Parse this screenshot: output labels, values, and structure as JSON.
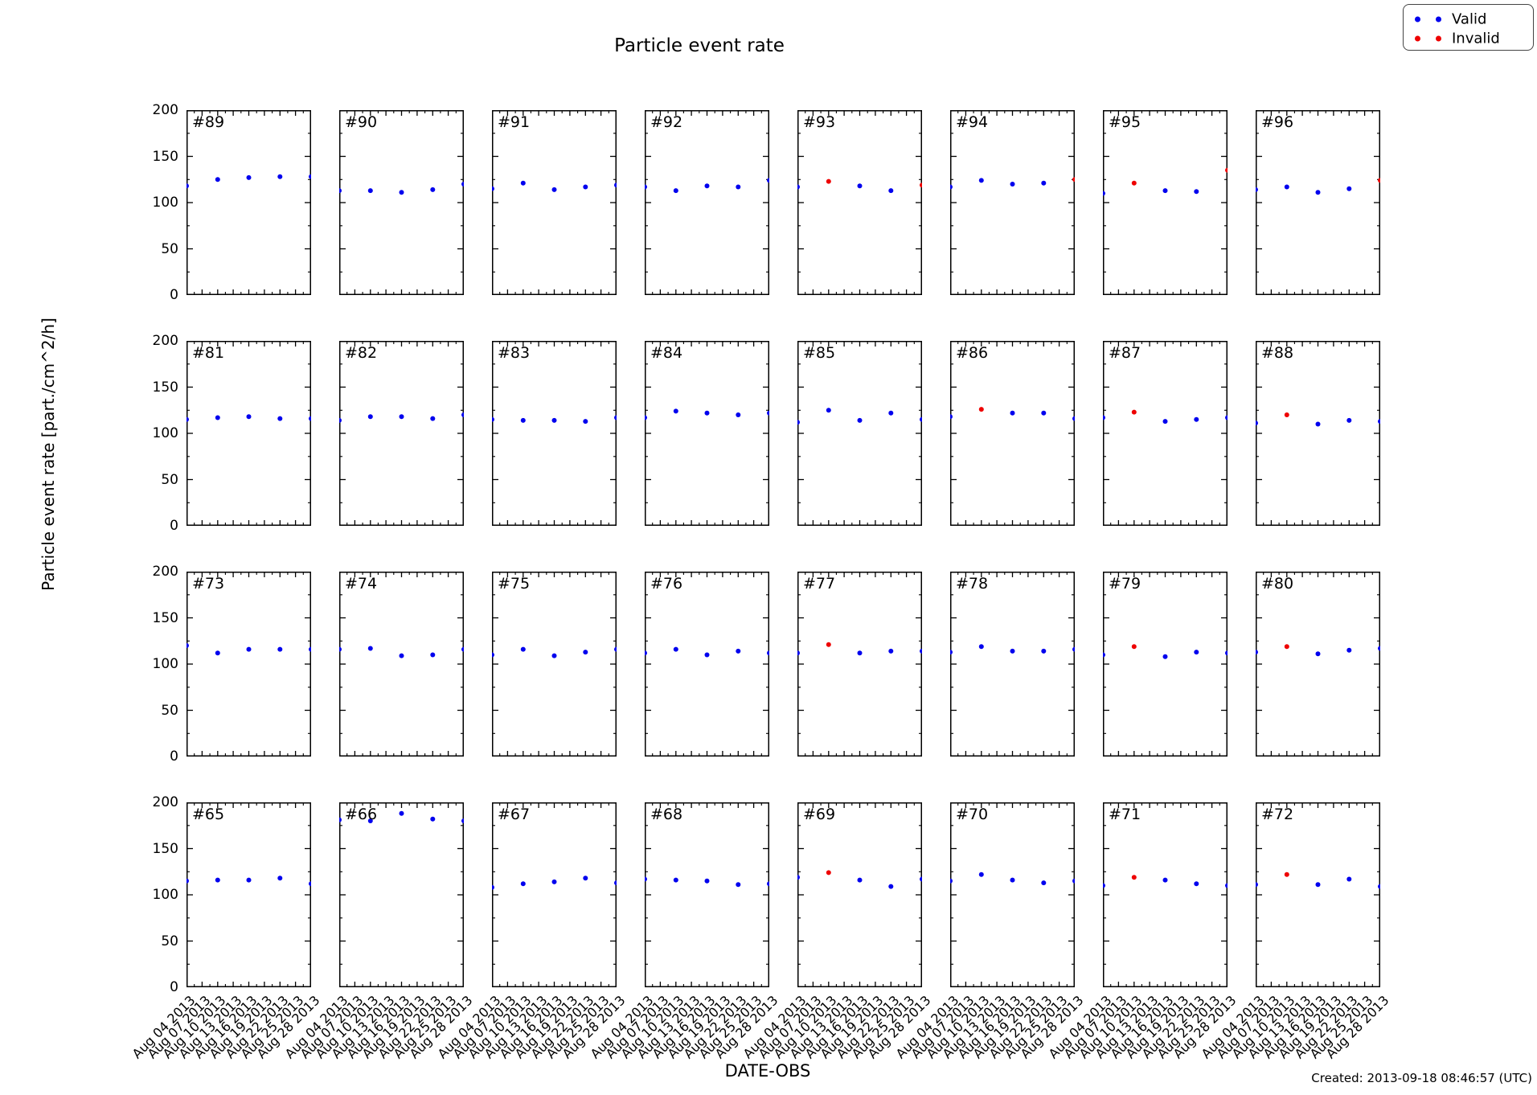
{
  "chart_data": {
    "type": "scatter",
    "title": "Particle event rate",
    "ylabel": "Particle event rate [part./cm^2/h]",
    "xlabel": "DATE-OBS",
    "created_note": "Created: 2013-09-18 08:46:57 (UTC)",
    "ylim": [
      0,
      200
    ],
    "y_ticks": [
      0,
      50,
      100,
      150,
      200
    ],
    "x_tick_labels": [
      "Aug 04 2013",
      "Aug 07 2013",
      "Aug 10 2013",
      "Aug 13 2013",
      "Aug 16 2013",
      "Aug 19 2013",
      "Aug 22 2013",
      "Aug 25 2013",
      "Aug 28 2013"
    ],
    "point_dates": [
      "Aug 04 2013",
      "Aug 10 2013",
      "Aug 16 2013",
      "Aug 22 2013",
      "Aug 28 2013"
    ],
    "grid": {
      "rows": 4,
      "cols": 8,
      "grid_on": false
    },
    "legend": {
      "position": "top-right",
      "entries": [
        {
          "label": "Valid",
          "color": "#0000ee"
        },
        {
          "label": "Invalid",
          "color": "#ee0000"
        }
      ]
    },
    "panels": [
      {
        "id": "#89",
        "values": [
          118,
          125,
          127,
          128,
          128
        ],
        "valid": [
          true,
          true,
          true,
          true,
          true
        ]
      },
      {
        "id": "#90",
        "values": [
          113,
          113,
          111,
          114,
          120
        ],
        "valid": [
          true,
          true,
          true,
          true,
          true
        ]
      },
      {
        "id": "#91",
        "values": [
          115,
          121,
          114,
          117,
          119
        ],
        "valid": [
          true,
          true,
          true,
          true,
          true
        ]
      },
      {
        "id": "#92",
        "values": [
          117,
          113,
          118,
          117,
          124
        ],
        "valid": [
          true,
          true,
          true,
          true,
          true
        ]
      },
      {
        "id": "#93",
        "values": [
          117,
          123,
          118,
          113,
          119
        ],
        "valid": [
          true,
          false,
          true,
          true,
          false
        ]
      },
      {
        "id": "#94",
        "values": [
          117,
          124,
          120,
          121,
          125
        ],
        "valid": [
          true,
          true,
          true,
          true,
          false
        ]
      },
      {
        "id": "#95",
        "values": [
          110,
          121,
          113,
          112,
          135
        ],
        "valid": [
          true,
          false,
          true,
          true,
          false
        ]
      },
      {
        "id": "#96",
        "values": [
          114,
          117,
          111,
          115,
          124
        ],
        "valid": [
          true,
          true,
          true,
          true,
          false
        ]
      },
      {
        "id": "#81",
        "values": [
          115,
          117,
          118,
          116,
          116
        ],
        "valid": [
          true,
          true,
          true,
          true,
          true
        ]
      },
      {
        "id": "#82",
        "values": [
          114,
          118,
          118,
          116,
          120
        ],
        "valid": [
          true,
          true,
          true,
          true,
          true
        ]
      },
      {
        "id": "#83",
        "values": [
          115,
          114,
          114,
          113,
          117
        ],
        "valid": [
          true,
          true,
          true,
          true,
          true
        ]
      },
      {
        "id": "#84",
        "values": [
          117,
          124,
          122,
          120,
          122
        ],
        "valid": [
          true,
          true,
          true,
          true,
          true
        ]
      },
      {
        "id": "#85",
        "values": [
          112,
          125,
          114,
          122,
          115
        ],
        "valid": [
          true,
          true,
          true,
          true,
          true
        ]
      },
      {
        "id": "#86",
        "values": [
          118,
          126,
          122,
          122,
          116
        ],
        "valid": [
          true,
          false,
          true,
          true,
          true
        ]
      },
      {
        "id": "#87",
        "values": [
          117,
          123,
          113,
          115,
          117
        ],
        "valid": [
          true,
          false,
          true,
          true,
          true
        ]
      },
      {
        "id": "#88",
        "values": [
          111,
          120,
          110,
          114,
          113
        ],
        "valid": [
          true,
          false,
          true,
          true,
          true
        ]
      },
      {
        "id": "#73",
        "values": [
          120,
          112,
          116,
          116,
          116
        ],
        "valid": [
          true,
          true,
          true,
          true,
          true
        ]
      },
      {
        "id": "#74",
        "values": [
          116,
          117,
          109,
          110,
          116
        ],
        "valid": [
          true,
          true,
          true,
          true,
          true
        ]
      },
      {
        "id": "#75",
        "values": [
          110,
          116,
          109,
          113,
          116
        ],
        "valid": [
          true,
          true,
          true,
          true,
          true
        ]
      },
      {
        "id": "#76",
        "values": [
          112,
          116,
          110,
          114,
          112
        ],
        "valid": [
          true,
          true,
          true,
          true,
          true
        ]
      },
      {
        "id": "#77",
        "values": [
          112,
          121,
          112,
          114,
          114
        ],
        "valid": [
          true,
          false,
          true,
          true,
          true
        ]
      },
      {
        "id": "#78",
        "values": [
          113,
          119,
          114,
          114,
          116
        ],
        "valid": [
          true,
          true,
          true,
          true,
          true
        ]
      },
      {
        "id": "#79",
        "values": [
          110,
          119,
          108,
          113,
          112
        ],
        "valid": [
          true,
          false,
          true,
          true,
          true
        ]
      },
      {
        "id": "#80",
        "values": [
          113,
          119,
          111,
          115,
          117
        ],
        "valid": [
          true,
          false,
          true,
          true,
          true
        ]
      },
      {
        "id": "#65",
        "values": [
          115,
          116,
          116,
          118,
          112
        ],
        "valid": [
          true,
          true,
          true,
          true,
          true
        ]
      },
      {
        "id": "#66",
        "values": [
          181,
          180,
          188,
          182,
          180
        ],
        "valid": [
          true,
          true,
          true,
          true,
          true
        ]
      },
      {
        "id": "#67",
        "values": [
          108,
          112,
          114,
          118,
          113
        ],
        "valid": [
          true,
          true,
          true,
          true,
          true
        ]
      },
      {
        "id": "#68",
        "values": [
          117,
          116,
          115,
          111,
          112
        ],
        "valid": [
          true,
          true,
          true,
          true,
          true
        ]
      },
      {
        "id": "#69",
        "values": [
          119,
          124,
          116,
          109,
          117
        ],
        "valid": [
          true,
          false,
          true,
          true,
          true
        ]
      },
      {
        "id": "#70",
        "values": [
          115,
          122,
          116,
          113,
          115
        ],
        "valid": [
          true,
          true,
          true,
          true,
          true
        ]
      },
      {
        "id": "#71",
        "values": [
          110,
          119,
          116,
          112,
          110
        ],
        "valid": [
          true,
          false,
          true,
          true,
          true
        ]
      },
      {
        "id": "#72",
        "values": [
          111,
          122,
          111,
          117,
          109
        ],
        "valid": [
          true,
          false,
          true,
          true,
          true
        ]
      }
    ]
  }
}
